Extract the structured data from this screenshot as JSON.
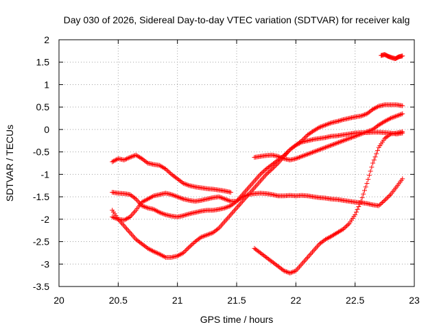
{
  "chart_data": {
    "type": "scatter",
    "title": "Day 030 of 2026, Sidereal Day-to-day VTEC variation (SDTVAR) for receiver kalg",
    "xlabel": "GPS time / hours",
    "ylabel": "SDTVAR / TECUs",
    "xlim": [
      20,
      23
    ],
    "ylim": [
      -3.5,
      2
    ],
    "xticks": [
      20,
      20.5,
      21,
      21.5,
      22,
      22.5,
      23
    ],
    "xtick_labels": [
      "20",
      "20.5",
      "21",
      "21.5",
      "22",
      "22.5",
      "23"
    ],
    "yticks": [
      2,
      1.5,
      1,
      0.5,
      0,
      -0.5,
      -1,
      -1.5,
      -2,
      -2.5,
      -3,
      -3.5
    ],
    "ytick_labels": [
      "2",
      "1.5",
      "1",
      "0.5",
      "0",
      "-0.5",
      "-1",
      "-1.5",
      "-2",
      "-2.5",
      "-3",
      "-3.5"
    ],
    "grid": true,
    "legend": "none",
    "marker": "plus",
    "color": "#ff0000",
    "series": [
      {
        "name": "track-1",
        "x": [
          20.45,
          20.5,
          20.55,
          20.6,
          20.65,
          20.7,
          20.75,
          20.8,
          20.85,
          20.9,
          20.95,
          21.0,
          21.05,
          21.1,
          21.15,
          21.2,
          21.25,
          21.3,
          21.35,
          21.4,
          21.45
        ],
        "y": [
          -0.72,
          -0.65,
          -0.68,
          -0.62,
          -0.57,
          -0.65,
          -0.75,
          -0.78,
          -0.8,
          -0.88,
          -1.0,
          -1.1,
          -1.2,
          -1.25,
          -1.28,
          -1.3,
          -1.32,
          -1.33,
          -1.35,
          -1.37,
          -1.4
        ]
      },
      {
        "name": "track-2",
        "x": [
          20.45,
          20.5,
          20.55,
          20.6,
          20.65,
          20.7,
          20.75,
          20.8,
          20.85,
          20.9,
          20.95,
          21.0,
          21.05,
          21.1,
          21.15,
          21.2,
          21.25,
          21.3,
          21.35,
          21.4,
          21.45,
          21.5,
          21.55,
          21.6,
          21.65,
          21.7,
          21.75,
          21.8,
          21.85,
          21.9,
          21.95,
          22.0,
          22.05,
          22.1,
          22.15,
          22.2,
          22.25,
          22.3,
          22.35,
          22.4,
          22.45,
          22.5,
          22.55,
          22.6,
          22.65,
          22.7,
          22.75,
          22.8,
          22.85,
          22.9
        ],
        "y": [
          -1.4,
          -1.42,
          -1.43,
          -1.45,
          -1.55,
          -1.7,
          -1.75,
          -1.78,
          -1.85,
          -1.9,
          -1.93,
          -1.95,
          -1.92,
          -1.88,
          -1.85,
          -1.82,
          -1.8,
          -1.8,
          -1.78,
          -1.75,
          -1.7,
          -1.6,
          -1.45,
          -1.3,
          -1.15,
          -1.0,
          -0.88,
          -0.78,
          -0.68,
          -0.58,
          -0.45,
          -0.35,
          -0.28,
          -0.25,
          -0.22,
          -0.2,
          -0.18,
          -0.15,
          -0.14,
          -0.12,
          -0.1,
          -0.08,
          -0.07,
          -0.07,
          -0.06,
          -0.06,
          -0.07,
          -0.08,
          -0.1,
          -0.08
        ]
      },
      {
        "name": "track-3",
        "x": [
          20.45,
          20.5,
          20.55,
          20.6,
          20.65,
          20.7,
          20.75,
          20.8,
          20.85,
          20.9,
          20.95,
          21.0,
          21.05,
          21.1,
          21.15,
          21.2,
          21.25,
          21.3,
          21.35,
          21.4,
          21.45,
          21.5,
          21.55,
          21.6,
          21.65,
          21.7,
          21.75,
          21.8,
          21.85,
          21.9,
          21.95,
          22.0,
          22.05,
          22.1,
          22.15,
          22.2,
          22.25,
          22.3,
          22.35,
          22.4,
          22.45,
          22.5,
          22.55,
          22.6,
          22.65,
          22.7,
          22.75,
          22.8,
          22.85,
          22.9
        ],
        "y": [
          -1.8,
          -2.0,
          -2.15,
          -2.3,
          -2.45,
          -2.55,
          -2.65,
          -2.72,
          -2.78,
          -2.85,
          -2.85,
          -2.82,
          -2.75,
          -2.62,
          -2.5,
          -2.4,
          -2.35,
          -2.3,
          -2.2,
          -2.05,
          -1.9,
          -1.75,
          -1.6,
          -1.45,
          -1.3,
          -1.15,
          -1.0,
          -0.88,
          -0.75,
          -0.6,
          -0.45,
          -0.35,
          -0.25,
          -0.12,
          -0.03,
          0.05,
          0.1,
          0.15,
          0.18,
          0.22,
          0.25,
          0.28,
          0.3,
          0.35,
          0.45,
          0.52,
          0.55,
          0.55,
          0.55,
          0.53
        ]
      },
      {
        "name": "track-4",
        "x": [
          20.45,
          20.5,
          20.55,
          20.6,
          20.65,
          20.7,
          20.75,
          20.8,
          20.85,
          20.9,
          20.95,
          21.0,
          21.05,
          21.1,
          21.15,
          21.2,
          21.25,
          21.3,
          21.35,
          21.4,
          21.45,
          21.5,
          21.55,
          21.6,
          21.65,
          21.7,
          21.75,
          21.8,
          21.85,
          21.9,
          21.95,
          22.0,
          22.05,
          22.1,
          22.15,
          22.2,
          22.25,
          22.3,
          22.35,
          22.4,
          22.45,
          22.5,
          22.55,
          22.6,
          22.65,
          22.7,
          22.75,
          22.8,
          22.85,
          22.9
        ],
        "y": [
          -1.95,
          -2.0,
          -2.02,
          -1.95,
          -1.8,
          -1.62,
          -1.55,
          -1.48,
          -1.45,
          -1.42,
          -1.45,
          -1.5,
          -1.55,
          -1.58,
          -1.6,
          -1.58,
          -1.55,
          -1.52,
          -1.5,
          -1.55,
          -1.6,
          -1.6,
          -1.5,
          -1.45,
          -1.43,
          -1.42,
          -1.43,
          -1.45,
          -1.48,
          -1.48,
          -1.47,
          -1.48,
          -1.47,
          -1.48,
          -1.5,
          -1.52,
          -1.53,
          -1.55,
          -1.56,
          -1.58,
          -1.6,
          -1.62,
          -1.63,
          -1.65,
          -1.68,
          -1.7,
          -1.58,
          -1.45,
          -1.28,
          -1.1
        ]
      },
      {
        "name": "track-5",
        "x": [
          21.65,
          21.7,
          21.75,
          21.8,
          21.85,
          21.9,
          21.95,
          22.0,
          22.05,
          22.1,
          22.15,
          22.2,
          22.25,
          22.3,
          22.35,
          22.4,
          22.45,
          22.5,
          22.55,
          22.6,
          22.65,
          22.7,
          22.75,
          22.8,
          22.85,
          22.9
        ],
        "y": [
          -0.62,
          -0.6,
          -0.58,
          -0.57,
          -0.6,
          -0.65,
          -0.68,
          -0.65,
          -0.6,
          -0.55,
          -0.5,
          -0.45,
          -0.4,
          -0.35,
          -0.3,
          -0.25,
          -0.2,
          -0.15,
          -0.1,
          -0.05,
          0.0,
          0.1,
          0.18,
          0.25,
          0.3,
          0.35
        ]
      },
      {
        "name": "track-6",
        "x": [
          21.65,
          21.7,
          21.75,
          21.8,
          21.85,
          21.9,
          21.95,
          22.0,
          22.05,
          22.1,
          22.15,
          22.2,
          22.25,
          22.3,
          22.35,
          22.4,
          22.45,
          22.5,
          22.55,
          22.6,
          22.65,
          22.7,
          22.75,
          22.8,
          22.85,
          22.9
        ],
        "y": [
          -2.65,
          -2.75,
          -2.85,
          -2.95,
          -3.05,
          -3.15,
          -3.2,
          -3.15,
          -3.0,
          -2.85,
          -2.7,
          -2.55,
          -2.45,
          -2.38,
          -2.3,
          -2.22,
          -2.1,
          -1.9,
          -1.6,
          -1.2,
          -0.75,
          -0.4,
          -0.2,
          -0.1,
          -0.08,
          -0.05
        ]
      },
      {
        "name": "track-7",
        "x": [
          22.72,
          22.75,
          22.78,
          22.81,
          22.84,
          22.87,
          22.9
        ],
        "y": [
          1.65,
          1.67,
          1.63,
          1.6,
          1.58,
          1.62,
          1.64
        ]
      }
    ]
  }
}
